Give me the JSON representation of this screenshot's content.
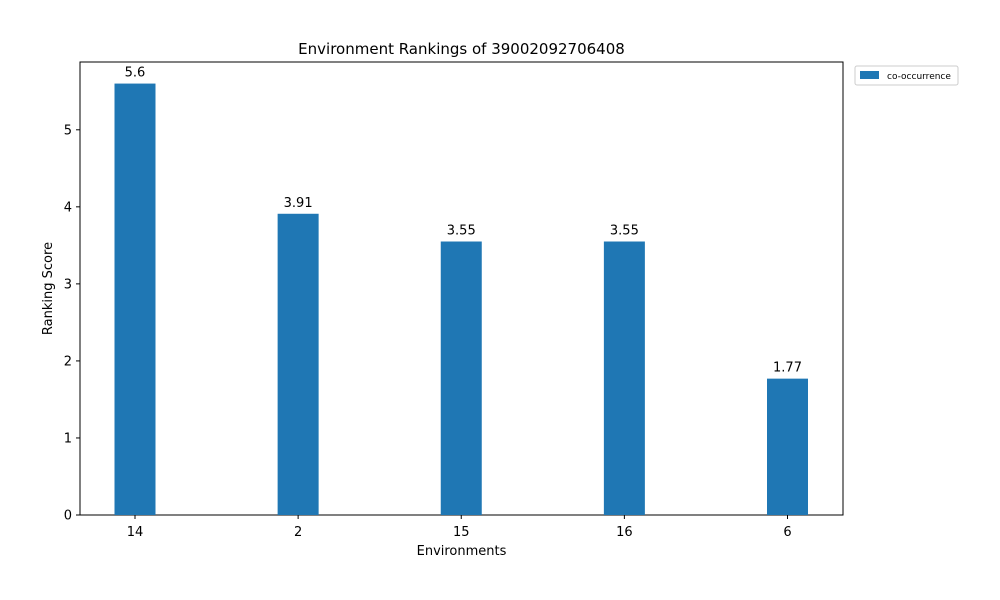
{
  "chart_data": {
    "type": "bar",
    "title": "Environment Rankings of 39002092706408",
    "xlabel": "Environments",
    "ylabel": "Ranking Score",
    "categories": [
      "14",
      "2",
      "15",
      "16",
      "6"
    ],
    "series": [
      {
        "name": "co-occurrence",
        "values": [
          5.6,
          3.91,
          3.55,
          3.55,
          1.77
        ],
        "labels": [
          "5.6",
          "3.91",
          "3.55",
          "3.55",
          "1.77"
        ],
        "color": "#1f77b4"
      }
    ],
    "ylim": [
      0,
      5.88
    ],
    "yticks": [
      0,
      1,
      2,
      3,
      4,
      5
    ],
    "grid": false,
    "legend_position": "outside-top-right"
  }
}
